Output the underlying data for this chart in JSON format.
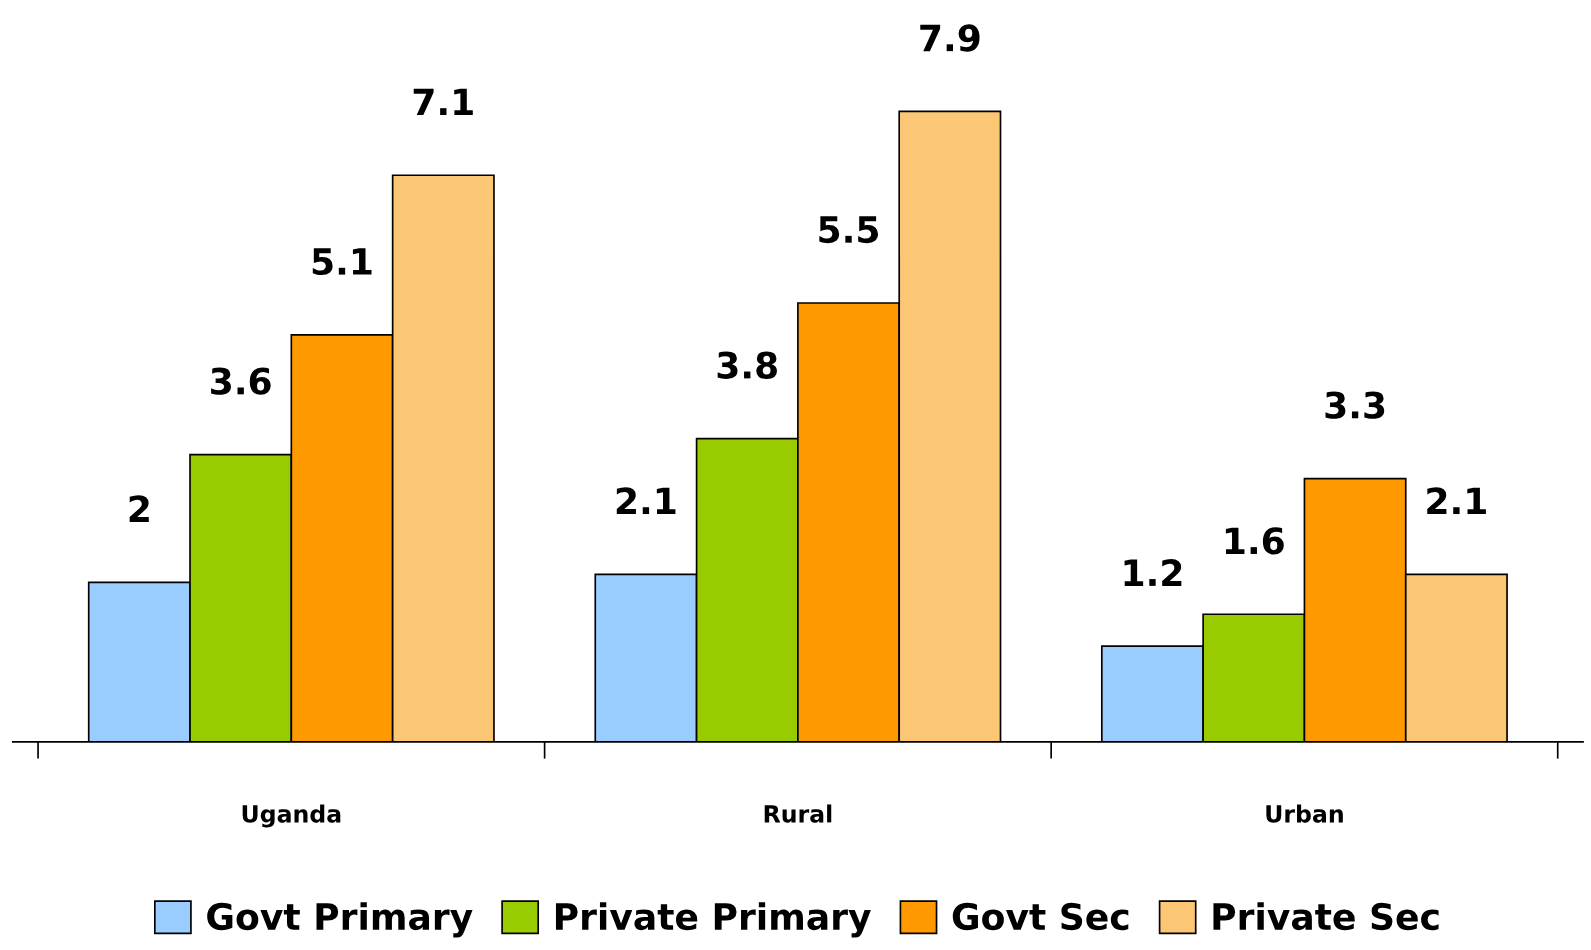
{
  "chart_data": {
    "type": "bar",
    "categories": [
      "Uganda",
      "Rural",
      "Urban"
    ],
    "series": [
      {
        "name": "Govt Primary",
        "color": "#99ccff",
        "values": [
          2,
          2.1,
          1.2
        ]
      },
      {
        "name": "Private Primary",
        "color": "#99cc00",
        "values": [
          3.6,
          3.8,
          1.6
        ]
      },
      {
        "name": "Govt Sec",
        "color": "#ff9900",
        "values": [
          5.1,
          5.5,
          3.3
        ]
      },
      {
        "name": "Private Sec",
        "color": "#fcc774",
        "values": [
          7.1,
          7.9,
          2.1
        ]
      }
    ],
    "data_labels": true,
    "legend": "bottom",
    "grid": false
  }
}
